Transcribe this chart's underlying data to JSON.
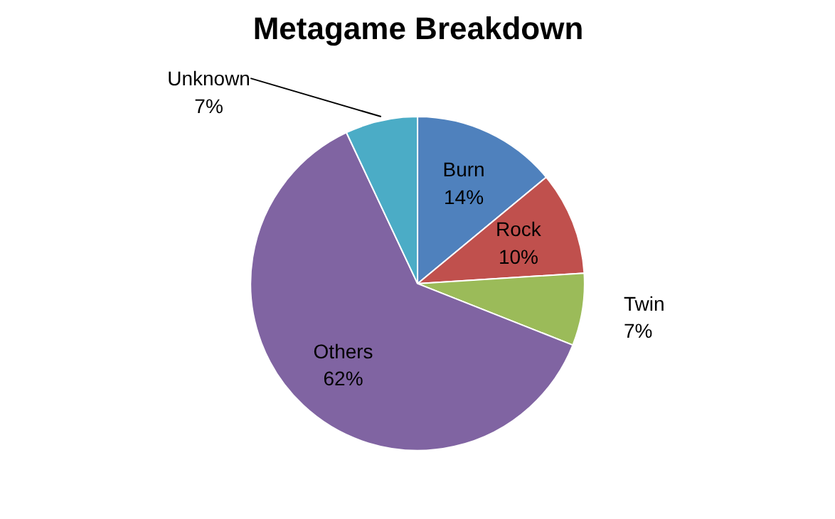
{
  "chart_data": {
    "type": "pie",
    "title": "Metagame Breakdown",
    "categories": [
      "Burn",
      "Rock",
      "Twin",
      "Others",
      "Unknown"
    ],
    "values": [
      14,
      10,
      7,
      62,
      7
    ],
    "colors": [
      "#4f81bd",
      "#c0504d",
      "#9bbb59",
      "#8064a2",
      "#4bacc6"
    ],
    "value_labels": [
      "14%",
      "10%",
      "7%",
      "62%",
      "7%"
    ]
  }
}
